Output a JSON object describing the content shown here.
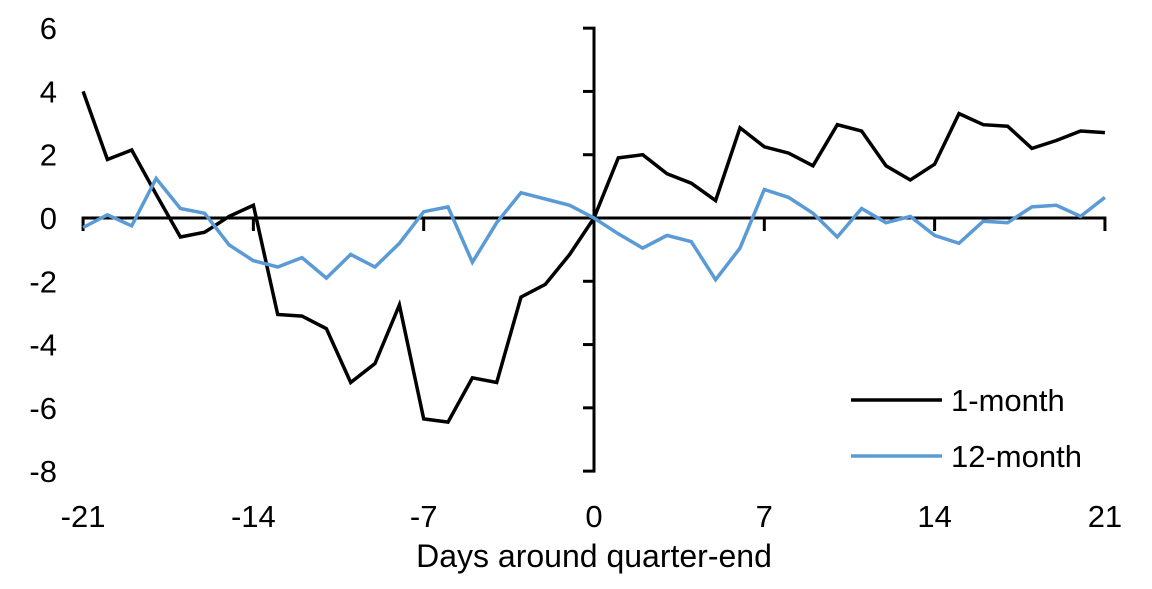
{
  "chart_data": {
    "type": "line",
    "title": "",
    "xlabel": "Days around quarter-end",
    "ylabel": "",
    "x": [
      -21,
      -20,
      -19,
      -18,
      -17,
      -16,
      -15,
      -14,
      -13,
      -12,
      -11,
      -10,
      -9,
      -8,
      -7,
      -6,
      -5,
      -4,
      -3,
      -2,
      -1,
      0,
      1,
      2,
      3,
      4,
      5,
      6,
      7,
      8,
      9,
      10,
      11,
      12,
      13,
      14,
      15,
      16,
      17,
      18,
      19,
      20,
      21
    ],
    "series": [
      {
        "name": "1-month",
        "color": "#000000",
        "values": [
          4.0,
          1.85,
          2.15,
          0.75,
          -0.6,
          -0.45,
          0.05,
          0.4,
          -3.05,
          -3.1,
          -3.5,
          -5.2,
          -4.6,
          -2.75,
          -6.35,
          -6.45,
          -5.05,
          -5.2,
          -2.5,
          -2.1,
          -1.15,
          0,
          1.9,
          2.0,
          1.4,
          1.1,
          0.55,
          2.85,
          2.25,
          2.05,
          1.65,
          2.95,
          2.75,
          1.65,
          1.2,
          1.7,
          3.3,
          2.95,
          2.9,
          2.2,
          2.45,
          2.75,
          2.7
        ]
      },
      {
        "name": "12-month",
        "color": "#5B9BD5",
        "values": [
          -0.3,
          0.1,
          -0.25,
          1.25,
          0.3,
          0.15,
          -0.85,
          -1.35,
          -1.55,
          -1.25,
          -1.9,
          -1.15,
          -1.55,
          -0.8,
          0.2,
          0.35,
          -1.4,
          -0.15,
          0.8,
          0.6,
          0.4,
          0,
          -0.5,
          -0.95,
          -0.55,
          -0.75,
          -1.95,
          -0.95,
          0.9,
          0.65,
          0.15,
          -0.6,
          0.3,
          -0.15,
          0.05,
          -0.55,
          -0.8,
          -0.1,
          -0.15,
          0.35,
          0.4,
          0.05,
          0.65
        ]
      }
    ],
    "xlim": [
      -21,
      21
    ],
    "ylim": [
      -8,
      6
    ],
    "xtick_labels": [
      "-21",
      "-14",
      "-7",
      "0",
      "7",
      "14",
      "21"
    ],
    "xtick_values": [
      -21,
      -14,
      -7,
      0,
      7,
      14,
      21
    ],
    "xtick_mark_values": [
      -21,
      -14,
      -7,
      7,
      14,
      21
    ],
    "ytick_labels": [
      "6",
      "4",
      "2",
      "0",
      "-2",
      "-4",
      "-6",
      "-8"
    ],
    "ytick_values": [
      6,
      4,
      2,
      0,
      -2,
      -4,
      -6,
      -8
    ],
    "ytick_mark_values": [
      6,
      4,
      2,
      -2,
      -4,
      -6,
      -8
    ],
    "grid": false,
    "legend_position": "lower right",
    "axis_color": "#000000",
    "background_color": "#FFFFFF"
  }
}
